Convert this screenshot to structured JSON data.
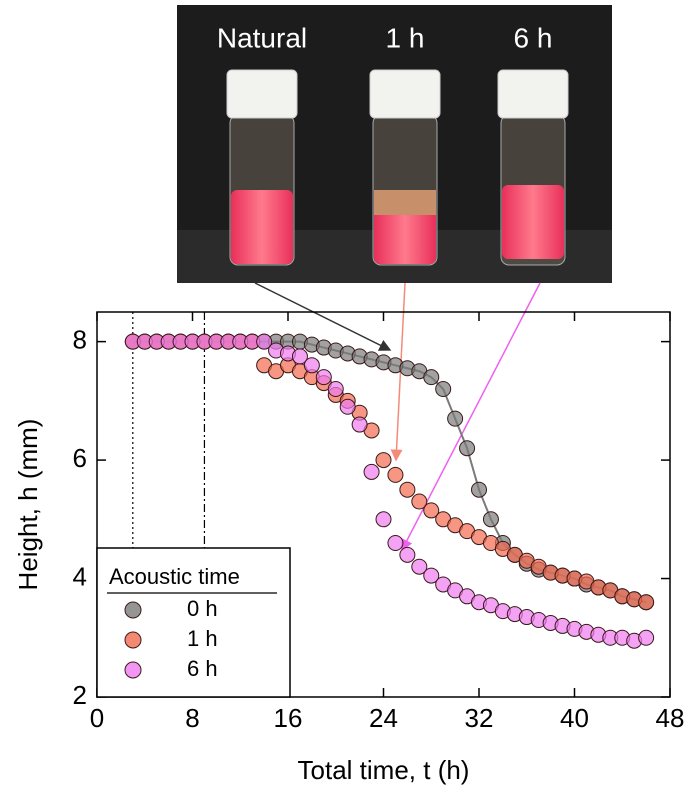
{
  "photo_labels": [
    "Natural",
    "1 h",
    "6 h"
  ],
  "chart_data": {
    "type": "scatter",
    "x_label": "Total time, t (h)",
    "y_label": "Height, h (mm)",
    "legend_title": "Acoustic time",
    "legend_position": "lower left",
    "xlim": [
      0,
      48
    ],
    "xticks": [
      0,
      8,
      16,
      24,
      32,
      40,
      48
    ],
    "ylim": [
      2,
      8.5
    ],
    "yticks": [
      2,
      4,
      6,
      8
    ],
    "vlines": [
      {
        "x": 3,
        "style": "dotted"
      },
      {
        "x": 9,
        "style": "dashdot"
      }
    ],
    "x": [
      3,
      4,
      5,
      6,
      7,
      8,
      9,
      10,
      11,
      12,
      13,
      14,
      15,
      16,
      17,
      18,
      19,
      20,
      21,
      22,
      23,
      24,
      25,
      26,
      27,
      28,
      29,
      30,
      31,
      32,
      33,
      34,
      35,
      36,
      37,
      38,
      39,
      40,
      41,
      42,
      43,
      44,
      45,
      46
    ],
    "series": [
      {
        "name": "0 h",
        "color": "#7a7a7a",
        "line": true,
        "values": [
          8,
          8,
          8,
          8,
          8,
          8,
          8,
          8,
          8,
          8,
          8,
          8,
          8,
          8,
          8,
          7.95,
          7.9,
          7.85,
          7.8,
          7.75,
          7.7,
          7.65,
          7.6,
          7.55,
          7.5,
          7.4,
          7.2,
          6.7,
          6.2,
          5.5,
          5.0,
          4.6,
          4.4,
          4.25,
          4.15,
          4.1,
          4.05,
          4.0,
          3.9,
          3.85,
          3.8,
          3.7,
          3.65,
          3.6
        ]
      },
      {
        "name": "1 h",
        "color": "#f26a4f",
        "line": false,
        "values": [
          8,
          8,
          8,
          8,
          8,
          8,
          8,
          8,
          8,
          8,
          8,
          7.6,
          7.5,
          7.6,
          7.5,
          7.4,
          7.3,
          7.1,
          7.0,
          6.8,
          6.5,
          6.0,
          5.75,
          5.5,
          5.3,
          5.15,
          5.0,
          4.9,
          4.8,
          4.7,
          4.6,
          4.5,
          4.4,
          4.3,
          4.2,
          4.1,
          4.05,
          4.0,
          3.95,
          3.85,
          3.8,
          3.7,
          3.65,
          3.6
        ]
      },
      {
        "name": "6 h",
        "color": "#f07cf0",
        "line": false,
        "values": [
          8,
          8,
          8,
          8,
          8,
          8,
          8,
          8,
          8,
          8,
          8,
          8,
          7.85,
          7.8,
          7.75,
          7.6,
          7.4,
          7.2,
          6.9,
          6.6,
          5.8,
          5.0,
          4.6,
          4.4,
          4.2,
          4.05,
          3.9,
          3.8,
          3.7,
          3.6,
          3.55,
          3.45,
          3.4,
          3.35,
          3.3,
          3.25,
          3.2,
          3.15,
          3.1,
          3.05,
          3.0,
          3.0,
          2.95,
          3.0
        ]
      }
    ]
  }
}
